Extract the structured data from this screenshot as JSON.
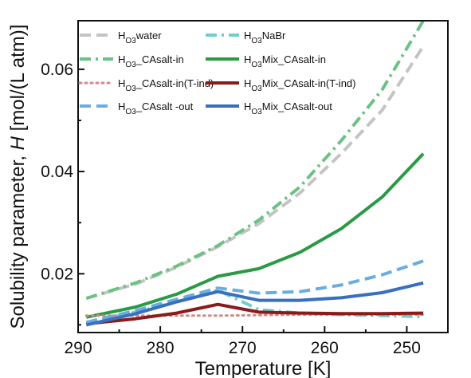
{
  "chart_data": {
    "type": "line",
    "xlabel": "Temperature [K]",
    "ylabel_parts": [
      "Solubility parameter, ",
      "H",
      " [mol/(L atm)]"
    ],
    "xlim": [
      290,
      245
    ],
    "ylim": [
      0.0085,
      0.0695
    ],
    "x_ticks": [
      290,
      280,
      270,
      260,
      250
    ],
    "y_ticks": [
      0.02,
      0.04,
      0.06
    ],
    "x_tick_labels": [
      "290",
      "280",
      "270",
      "260",
      "250"
    ],
    "y_tick_labels": [
      "0.02",
      "0.04",
      "0.06"
    ],
    "grid": false,
    "legend_position": "top",
    "series": [
      {
        "name": "HO3water",
        "legend_parts": [
          "H",
          "O3",
          "water"
        ],
        "color": "#c4c4c4",
        "style": "dash",
        "x": [
          289,
          283,
          278,
          273,
          268,
          263,
          258,
          253,
          248
        ],
        "y": [
          0.0152,
          0.018,
          0.0213,
          0.0253,
          0.0298,
          0.0358,
          0.0435,
          0.052,
          0.0645
        ]
      },
      {
        "name": "HO3NaBr",
        "legend_parts": [
          "H",
          "O3",
          "NaBr"
        ],
        "color": "#6dcfcf",
        "style": "dashdot",
        "x": [
          289,
          283,
          278,
          273,
          268,
          263,
          258,
          253,
          248
        ],
        "y": [
          0.0105,
          0.0125,
          0.0145,
          0.0168,
          0.013,
          0.0123,
          0.012,
          0.0118,
          0.0116
        ]
      },
      {
        "name": "HO3_CAsalt-in",
        "legend_parts": [
          "H",
          "O3",
          "_CAsalt-in"
        ],
        "color": "#6cc184",
        "style": "dashdot",
        "x": [
          289,
          283,
          278,
          273,
          268,
          263,
          258,
          253,
          248
        ],
        "y": [
          0.0152,
          0.0182,
          0.0215,
          0.0255,
          0.0305,
          0.037,
          0.046,
          0.056,
          0.0695
        ]
      },
      {
        "name": "HO3Mix_CAsalt-in",
        "legend_parts": [
          "H",
          "O3",
          "Mix_CAsalt-in"
        ],
        "color": "#2a9a45",
        "style": "solid",
        "x": [
          289,
          283,
          278,
          273,
          268,
          263,
          258,
          253,
          248
        ],
        "y": [
          0.0115,
          0.0135,
          0.016,
          0.0195,
          0.021,
          0.0242,
          0.0288,
          0.035,
          0.0435
        ]
      },
      {
        "name": "HO3_CAsalt-in(T-ind)",
        "legend_parts": [
          "H",
          "O3",
          "_CAsalt-in(T-ind)"
        ],
        "color": "#d08a8a",
        "style": "dot",
        "x": [
          289,
          283,
          278,
          273,
          268,
          263,
          258,
          253,
          248
        ],
        "y": [
          0.0118,
          0.0118,
          0.0118,
          0.0118,
          0.0119,
          0.012,
          0.012,
          0.012,
          0.012
        ]
      },
      {
        "name": "HO3Mix_CAsalt-in(T-ind)",
        "legend_parts": [
          "H",
          "O3",
          "Mix_CAsalt-in(T-ind)"
        ],
        "color": "#8b1a1a",
        "style": "solid",
        "x": [
          289,
          283,
          278,
          273,
          268,
          263,
          258,
          253,
          248
        ],
        "y": [
          0.0102,
          0.0112,
          0.0123,
          0.014,
          0.0125,
          0.0123,
          0.0122,
          0.0122,
          0.0123
        ]
      },
      {
        "name": "HO3_CAsalt -out",
        "legend_parts": [
          "H",
          "O3",
          "_CAsalt -out"
        ],
        "color": "#6aaee0",
        "style": "dash",
        "x": [
          289,
          283,
          278,
          273,
          268,
          263,
          258,
          253,
          248
        ],
        "y": [
          0.0105,
          0.0128,
          0.015,
          0.0172,
          0.0162,
          0.0165,
          0.0178,
          0.0198,
          0.0225
        ]
      },
      {
        "name": "HO3Mix_CAsalt-out",
        "legend_parts": [
          "H",
          "O3",
          "Mix_CAsalt-out"
        ],
        "color": "#3a6fbf",
        "style": "solid",
        "x": [
          289,
          283,
          278,
          273,
          268,
          263,
          258,
          253,
          248
        ],
        "y": [
          0.01,
          0.0122,
          0.0145,
          0.0165,
          0.0148,
          0.0148,
          0.0153,
          0.0163,
          0.0182
        ]
      }
    ]
  }
}
